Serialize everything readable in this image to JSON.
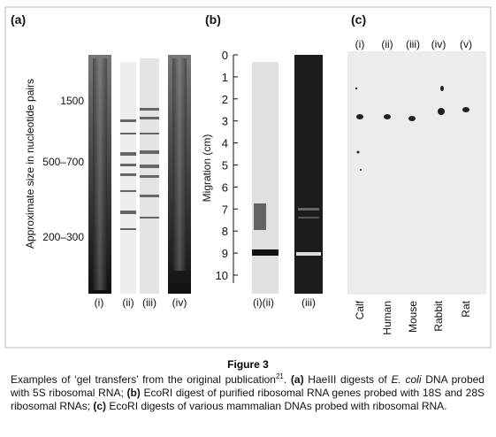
{
  "figure": {
    "panels": {
      "a": {
        "label": "(a)",
        "axis_label": "Approximate size in nucleotide pairs",
        "size_labels": [
          "1500",
          "500–700",
          "200–300"
        ],
        "lanes": [
          "(i)",
          "(ii)",
          "(iii)",
          "(iv)"
        ]
      },
      "b": {
        "label": "(b)",
        "axis_label": "Migration (cm)",
        "ticks": [
          0,
          1,
          2,
          3,
          4,
          5,
          6,
          7,
          8,
          9,
          10
        ],
        "lanes": [
          "(i)(ii)",
          "(iii)"
        ]
      },
      "c": {
        "label": "(c)",
        "lanes": [
          "(i)",
          "(ii)",
          "(iii)",
          "(iv)",
          "(v)"
        ],
        "species": [
          "Calf",
          "Human",
          "Mouse",
          "Rabbit",
          "Rat"
        ]
      }
    },
    "title": "Figure 3",
    "caption": [
      "Examples of ‘gel transfers’ from the original publication",
      "21",
      ". ",
      "(a)",
      " HaeIII digests of ",
      "E. coli",
      " DNA probed with 5S ribosomal RNA; ",
      "(b)",
      " EcoRI digest of purified ribosomal RNA genes probed with 18S and 28S ribosomal RNAs; ",
      "(c)",
      " EcoRI digests of various mammalian DNAs probed with ribosomal RNA."
    ]
  }
}
